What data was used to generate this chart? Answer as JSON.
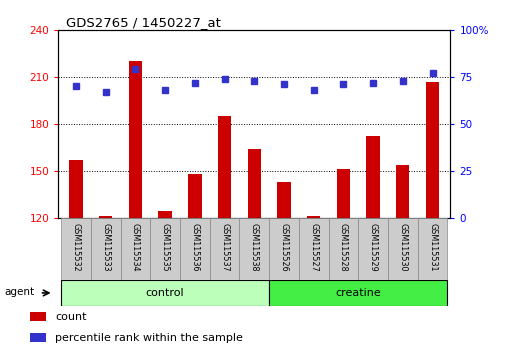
{
  "title": "GDS2765 / 1450227_at",
  "categories": [
    "GSM115532",
    "GSM115533",
    "GSM115534",
    "GSM115535",
    "GSM115536",
    "GSM115537",
    "GSM115538",
    "GSM115526",
    "GSM115527",
    "GSM115528",
    "GSM115529",
    "GSM115530",
    "GSM115531"
  ],
  "count_values": [
    157,
    121,
    220,
    124,
    148,
    185,
    164,
    143,
    121,
    151,
    172,
    154,
    207
  ],
  "percentile_values": [
    70,
    67,
    79,
    68,
    72,
    74,
    73,
    71,
    68,
    71,
    72,
    73,
    77
  ],
  "groups": [
    {
      "label": "control",
      "start": 0,
      "end": 7,
      "color": "#bbffbb"
    },
    {
      "label": "creatine",
      "start": 7,
      "end": 13,
      "color": "#44ee44"
    }
  ],
  "ylim_left": [
    120,
    240
  ],
  "ylim_right": [
    0,
    100
  ],
  "yticks_left": [
    120,
    150,
    180,
    210,
    240
  ],
  "yticks_right": [
    0,
    25,
    50,
    75,
    100
  ],
  "ytick_labels_right": [
    "0",
    "25",
    "50",
    "75",
    "100%"
  ],
  "bar_color": "#cc0000",
  "dot_color": "#3333cc",
  "background_color": "#ffffff",
  "label_bg_color": "#cccccc",
  "bar_width": 0.45,
  "legend_items": [
    {
      "label": "count",
      "color": "#cc0000"
    },
    {
      "label": "percentile rank within the sample",
      "color": "#3333cc"
    }
  ]
}
